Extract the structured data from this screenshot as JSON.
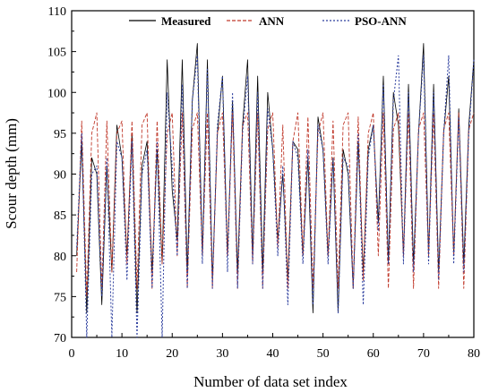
{
  "chart_data": {
    "type": "line",
    "title": "",
    "xlabel": "Number of data set index",
    "ylabel": "Scour depth (mm)",
    "xlim": [
      0,
      80
    ],
    "ylim": [
      70,
      110
    ],
    "x_ticks": [
      0,
      10,
      20,
      30,
      40,
      50,
      60,
      70,
      80
    ],
    "y_ticks": [
      70,
      75,
      80,
      85,
      90,
      95,
      100,
      105,
      110
    ],
    "grid": false,
    "legend_position": "top",
    "x": [
      1,
      2,
      3,
      4,
      5,
      6,
      7,
      8,
      9,
      10,
      11,
      12,
      13,
      14,
      15,
      16,
      17,
      18,
      19,
      20,
      21,
      22,
      23,
      24,
      25,
      26,
      27,
      28,
      29,
      30,
      31,
      32,
      33,
      34,
      35,
      36,
      37,
      38,
      39,
      40,
      41,
      42,
      43,
      44,
      45,
      46,
      47,
      48,
      49,
      50,
      51,
      52,
      53,
      54,
      55,
      56,
      57,
      58,
      59,
      60,
      61,
      62,
      63,
      64,
      65,
      66,
      67,
      68,
      69,
      70,
      71,
      72,
      73,
      74,
      75,
      76,
      77,
      78,
      79,
      80
    ],
    "series": [
      {
        "name": "Measured",
        "color": "#000000",
        "dash": "solid",
        "values": [
          80,
          94,
          73,
          92,
          90,
          74,
          91,
          78,
          96,
          92,
          80,
          95,
          73,
          91,
          94,
          78,
          93,
          79,
          104,
          88,
          82,
          104,
          78,
          99,
          106,
          80,
          104,
          77,
          95,
          102,
          80,
          99,
          78,
          96,
          104,
          80,
          102,
          78,
          100,
          93,
          82,
          90,
          77,
          94,
          93,
          80,
          92,
          73,
          97,
          93,
          80,
          92,
          73,
          93,
          90,
          76,
          94,
          78,
          93,
          96,
          84,
          102,
          79,
          100,
          96,
          80,
          101,
          79,
          95,
          106,
          80,
          101,
          78,
          95,
          102,
          80,
          98,
          79,
          96,
          104
        ]
      },
      {
        "name": "ANN",
        "color": "#c0392b",
        "dash": "dash",
        "values": [
          78,
          96.5,
          75,
          95,
          97.5,
          76,
          96.5,
          78,
          95,
          96.5,
          79,
          96.5,
          76,
          96,
          97.5,
          76,
          96.5,
          79,
          95,
          97.5,
          80,
          97.5,
          76,
          95.5,
          97.5,
          80,
          97.5,
          76,
          95,
          97.5,
          80,
          97.5,
          76,
          96,
          97.5,
          79,
          97.5,
          76,
          95.5,
          97.5,
          81,
          96,
          76,
          94,
          97.5,
          80,
          97,
          76,
          95,
          97.5,
          80,
          96.5,
          76,
          96,
          97.5,
          76,
          97,
          77,
          95,
          97.5,
          80,
          97.5,
          76,
          95.5,
          97.5,
          80,
          97.5,
          76,
          95.5,
          97.5,
          80,
          97.5,
          76,
          95.5,
          97.5,
          80,
          97.5,
          76,
          95.5,
          97.5
        ]
      },
      {
        "name": "PSO-ANN",
        "color": "#2c3e9e",
        "dash": "dot",
        "values": [
          81,
          95,
          70,
          90,
          91,
          75,
          92,
          70,
          94,
          92,
          77,
          94,
          70,
          90,
          93,
          76,
          94,
          70,
          100,
          91,
          80,
          101,
          76,
          99,
          104.5,
          79,
          103,
          76,
          96,
          102,
          78,
          100,
          76,
          95,
          102,
          79,
          100,
          76,
          98,
          93,
          80,
          91,
          74,
          94,
          92,
          79,
          93,
          74,
          96,
          93,
          79,
          92,
          73,
          92,
          91,
          76,
          95,
          74,
          92,
          96,
          83,
          101,
          79,
          99,
          104.5,
          79,
          100,
          78,
          95,
          104.5,
          79,
          100,
          77,
          95,
          104.5,
          79,
          97,
          78,
          95,
          104
        ]
      }
    ]
  }
}
